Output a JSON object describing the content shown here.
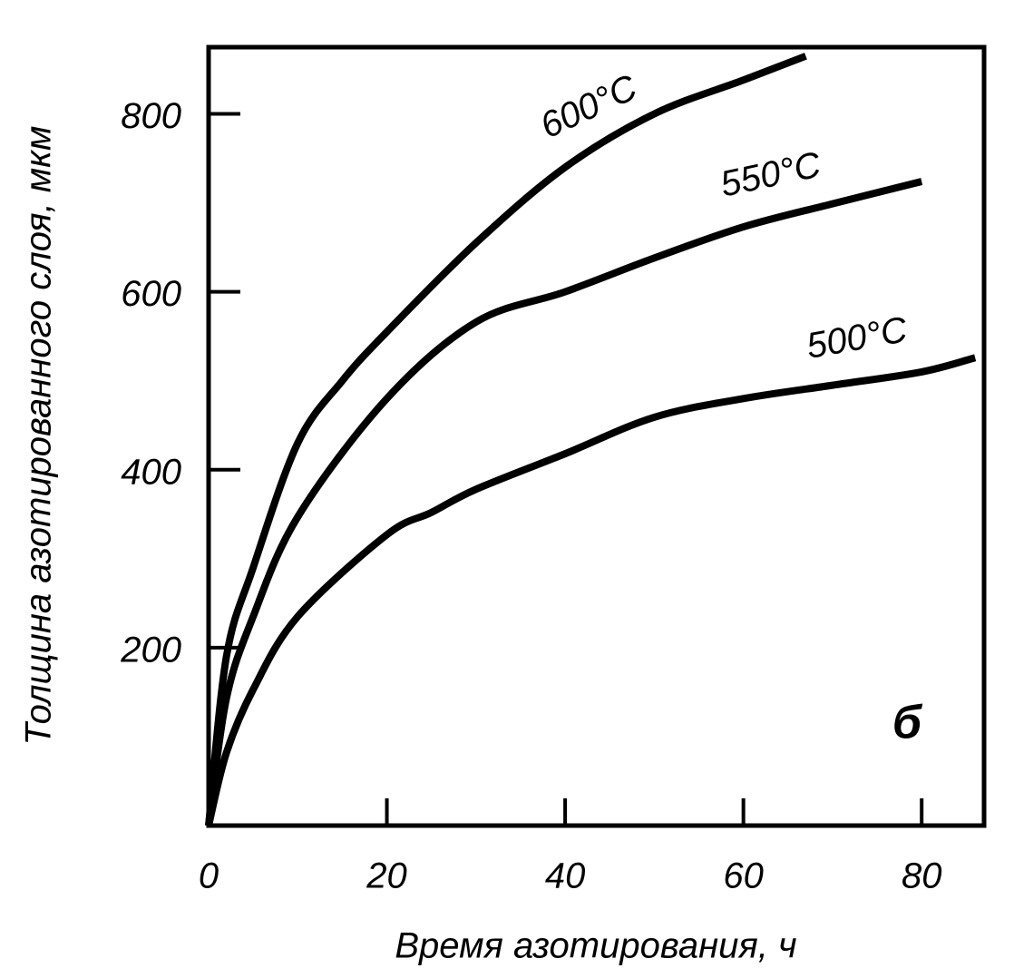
{
  "chart_data": {
    "type": "line",
    "x_label": "Время азотирования, ч",
    "y_label": "Толщина азотированного слоя, мкм",
    "annotation": "б",
    "xlim": [
      0,
      87
    ],
    "xticks": [
      0,
      20,
      40,
      60,
      80
    ],
    "ylim": [
      0,
      875
    ],
    "yticks": [
      200,
      400,
      600,
      800
    ],
    "color": "#000000",
    "series": [
      {
        "name": "600°C",
        "x": [
          0,
          2,
          5,
          10,
          15,
          20,
          30,
          40,
          50,
          60,
          67
        ],
        "values": [
          0,
          190,
          290,
          430,
          500,
          555,
          655,
          740,
          800,
          838,
          865
        ]
      },
      {
        "name": "550°C",
        "x": [
          0,
          2,
          5,
          10,
          20,
          30,
          40,
          50,
          60,
          70,
          80
        ],
        "values": [
          0,
          143,
          235,
          347,
          480,
          566,
          600,
          638,
          673,
          699,
          724
        ]
      },
      {
        "name": "500°C",
        "x": [
          0,
          2,
          5,
          10,
          20,
          25,
          30,
          40,
          50,
          60,
          70,
          80,
          86
        ],
        "values": [
          0,
          82,
          153,
          235,
          327,
          352,
          378,
          418,
          459,
          480,
          495,
          510,
          526
        ]
      }
    ]
  }
}
